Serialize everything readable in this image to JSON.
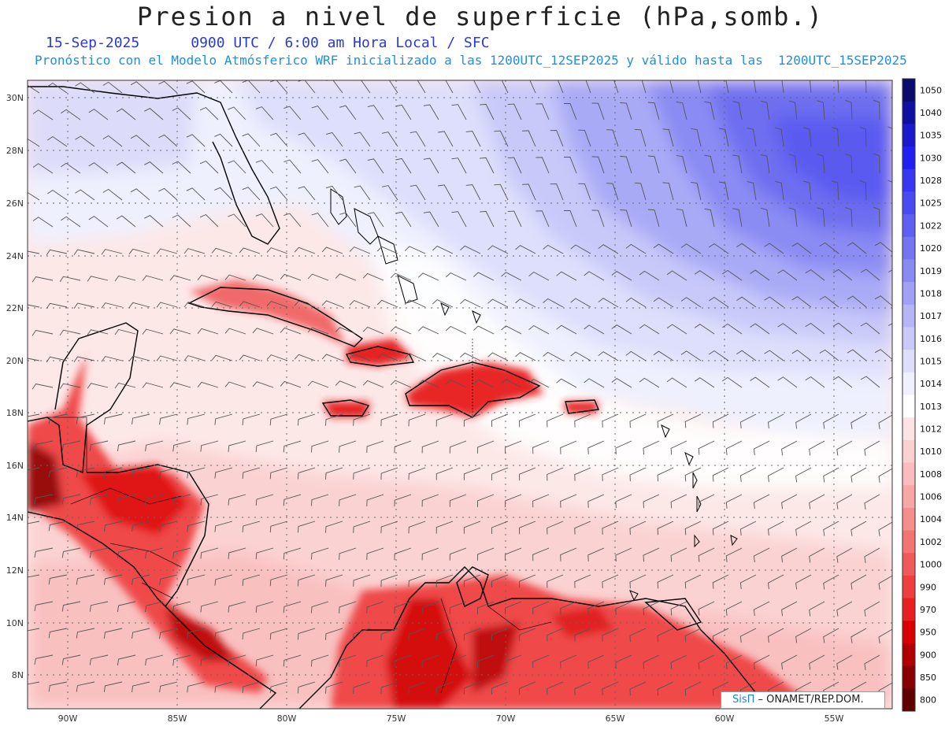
{
  "header": {
    "title": "Presion a nivel de superficie (hPa,somb.)",
    "date": "15-Sep-2025",
    "time_info": "0900 UTC / 6:00 am Hora Local / SFC",
    "model_info": "Pronóstico con el Modelo Atmósferico WRF inicializado a las 1200UTC_12SEP2025 y válido hasta las  1200UTC_15SEP2025"
  },
  "map": {
    "lat_labels": [
      "30N",
      "28N",
      "26N",
      "24N",
      "22N",
      "20N",
      "18N",
      "16N",
      "14N",
      "12N",
      "10N",
      "8N"
    ],
    "lon_labels": [
      "90W",
      "85W",
      "80W",
      "75W",
      "70W",
      "65W",
      "60W",
      "55W"
    ]
  },
  "colorbar": {
    "levels": [
      "1050",
      "1040",
      "1035",
      "1030",
      "1028",
      "1025",
      "1022",
      "1020",
      "1019",
      "1018",
      "1017",
      "1016",
      "1015",
      "1014",
      "1013",
      "1012",
      "1010",
      "1008",
      "1006",
      "1004",
      "1002",
      "1000",
      "990",
      "970",
      "950",
      "900",
      "850",
      "800"
    ],
    "colors": [
      "#0b0b6e",
      "#0f0fa0",
      "#1a1acc",
      "#2020f0",
      "#3838f4",
      "#4a4af2",
      "#5f5ff2",
      "#7575f2",
      "#8a8af4",
      "#a0a0f6",
      "#b5b5f8",
      "#cacafa",
      "#dedefc",
      "#f0f0fe",
      "#ffffff",
      "#fde4e4",
      "#fcd0d0",
      "#fabcbc",
      "#f8a6a6",
      "#f68e8e",
      "#f37474",
      "#f05a5a",
      "#ee3e3e",
      "#e82020",
      "#d80000",
      "#b00000",
      "#880000",
      "#600000"
    ]
  },
  "credit": {
    "brand": "SisΠ",
    "org": " – ONAMET/REP.DOM."
  }
}
